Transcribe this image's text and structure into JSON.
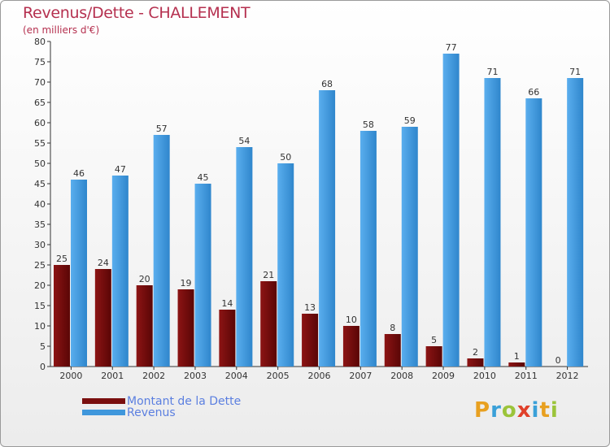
{
  "chart_data": {
    "type": "bar",
    "title": "Revenus/Dette - CHALLEMENT",
    "subtitle": "(en milliers d'€)",
    "categories": [
      "2000",
      "2001",
      "2002",
      "2003",
      "2004",
      "2005",
      "2006",
      "2007",
      "2008",
      "2009",
      "2010",
      "2011",
      "2012"
    ],
    "series": [
      {
        "name": "Montant de la Dette",
        "color": "#7a0f0f",
        "values": [
          25,
          24,
          20,
          19,
          14,
          21,
          13,
          10,
          8,
          5,
          2,
          1,
          0
        ]
      },
      {
        "name": "Revenus",
        "color": "#3f97dc",
        "values": [
          46,
          47,
          57,
          45,
          54,
          50,
          68,
          58,
          59,
          77,
          71,
          66,
          71
        ]
      }
    ],
    "yticks": [
      0,
      5,
      10,
      15,
      20,
      25,
      30,
      35,
      40,
      45,
      50,
      55,
      60,
      65,
      70,
      75,
      80
    ],
    "ylim": [
      0,
      80
    ],
    "xlabel": "",
    "ylabel": "",
    "grid": false,
    "legend": "bottom-left"
  },
  "legend": {
    "items": [
      {
        "label": "Montant de la Dette",
        "color": "#7a0f0f"
      },
      {
        "label": "Revenus",
        "color": "#3f97dc"
      }
    ]
  },
  "brand": {
    "letters": [
      "P",
      "r",
      "o",
      "x",
      "i",
      "t",
      "i"
    ],
    "colors": [
      "#e8a020",
      "#3aa0d8",
      "#9bc43a",
      "#e0402a",
      "#3aa0d8",
      "#e8a020",
      "#9bc43a"
    ]
  }
}
